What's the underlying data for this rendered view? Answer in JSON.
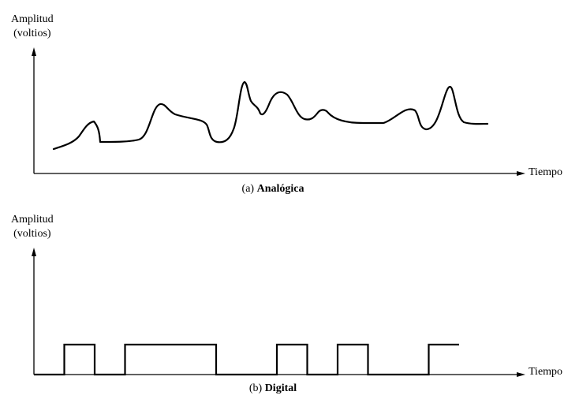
{
  "analog_panel": {
    "y_label_line1": "Amplitud",
    "y_label_line2": "(voltios)",
    "x_label": "Tiempo",
    "caption_prefix": "(a)",
    "caption_title": "Analógica"
  },
  "digital_panel": {
    "y_label_line1": "Amplitud",
    "y_label_line2": "(voltios)",
    "x_label": "Tiempo",
    "caption_prefix": "(b)",
    "caption_title": "Digital",
    "bit_levels": [
      0,
      1,
      0,
      1,
      1,
      1,
      0,
      0,
      1,
      0,
      1,
      0,
      0,
      1
    ]
  }
}
